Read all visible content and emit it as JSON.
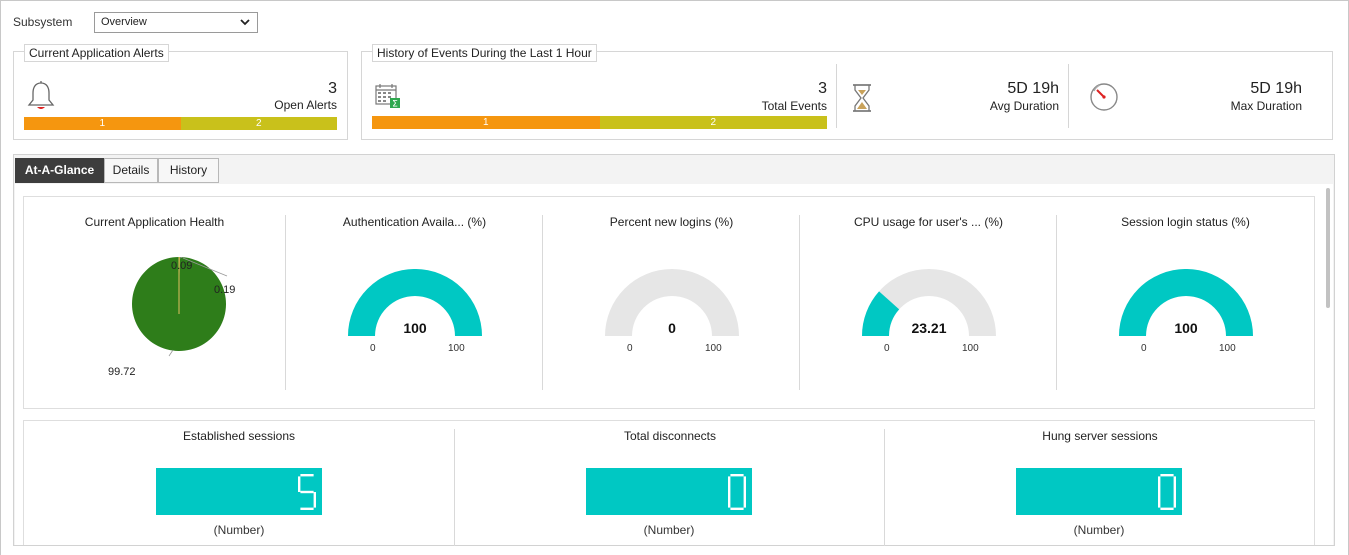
{
  "subsystem": {
    "label": "Subsystem",
    "selected": "Overview"
  },
  "current_alerts": {
    "legend": "Current Application Alerts",
    "count": "3",
    "count_label": "Open Alerts",
    "bar": [
      {
        "label": "1",
        "color": "#f5960f"
      },
      {
        "label": "2",
        "color": "#c9c11b"
      }
    ]
  },
  "history": {
    "legend": "History of Events During the Last 1 Hour",
    "total": "3",
    "total_label": "Total Events",
    "bar": [
      {
        "label": "1",
        "color": "#f5960f"
      },
      {
        "label": "2",
        "color": "#c9c11b"
      }
    ],
    "avg_value": "5D 19h",
    "avg_label": "Avg Duration",
    "max_value": "5D 19h",
    "max_label": "Max Duration"
  },
  "tabs": [
    {
      "label": "At-A-Glance",
      "active": true
    },
    {
      "label": "Details",
      "active": false
    },
    {
      "label": "History",
      "active": false
    }
  ],
  "health": {
    "title": "Current Application Health",
    "slices": [
      {
        "label": "99.72",
        "value": 99.72,
        "color": "#2e7d1a"
      },
      {
        "label": "0.09",
        "value": 0.09,
        "color": "#e0c060"
      },
      {
        "label": "0.19",
        "value": 0.19,
        "color": "#f5960f"
      }
    ]
  },
  "gauges": [
    {
      "title": "Authentication Availa... (%)",
      "value": 100,
      "display": "100",
      "min": "0",
      "max": "100"
    },
    {
      "title": "Percent new logins (%)",
      "value": 0,
      "display": "0",
      "min": "0",
      "max": "100"
    },
    {
      "title": "CPU usage for user's ... (%)",
      "value": 23.21,
      "display": "23.21",
      "min": "0",
      "max": "100"
    },
    {
      "title": "Session login status (%)",
      "value": 100,
      "display": "100",
      "min": "0",
      "max": "100"
    }
  ],
  "counters": [
    {
      "title": "Established sessions",
      "value": "5",
      "unit": "(Number)"
    },
    {
      "title": "Total disconnects",
      "value": "0",
      "unit": "(Number)"
    },
    {
      "title": "Hung server sessions",
      "value": "0",
      "unit": "(Number)"
    }
  ],
  "colors": {
    "gauge_fill": "#00c8c3",
    "gauge_track": "#e6e6e6",
    "severity_major": "#f5960f",
    "severity_minor": "#c9c11b"
  }
}
